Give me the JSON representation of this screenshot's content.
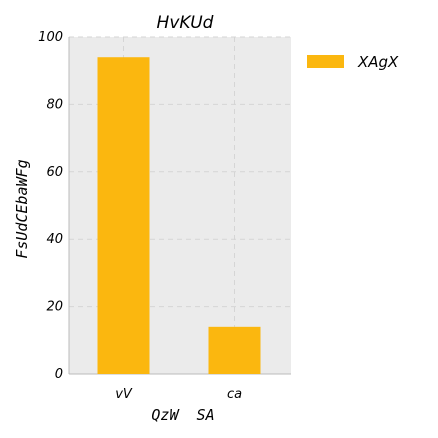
{
  "chart_data": {
    "type": "bar",
    "title": "HvKUd",
    "xlabel": "QzW  SA",
    "ylabel": "FsUdCEbaWFg",
    "categories": [
      "vV",
      "ca"
    ],
    "series": [
      {
        "name": "XAgX",
        "values": [
          94,
          14
        ]
      }
    ],
    "ylim": [
      0,
      100
    ],
    "yticks": [
      0,
      20,
      40,
      60,
      80,
      100
    ],
    "grid": true,
    "legend_position": "right",
    "colors": {
      "bar": "#FBB70F",
      "plot_background": "#EBEBEB",
      "grid": "#D5D5D5",
      "axis": "#BBBBBB"
    }
  }
}
